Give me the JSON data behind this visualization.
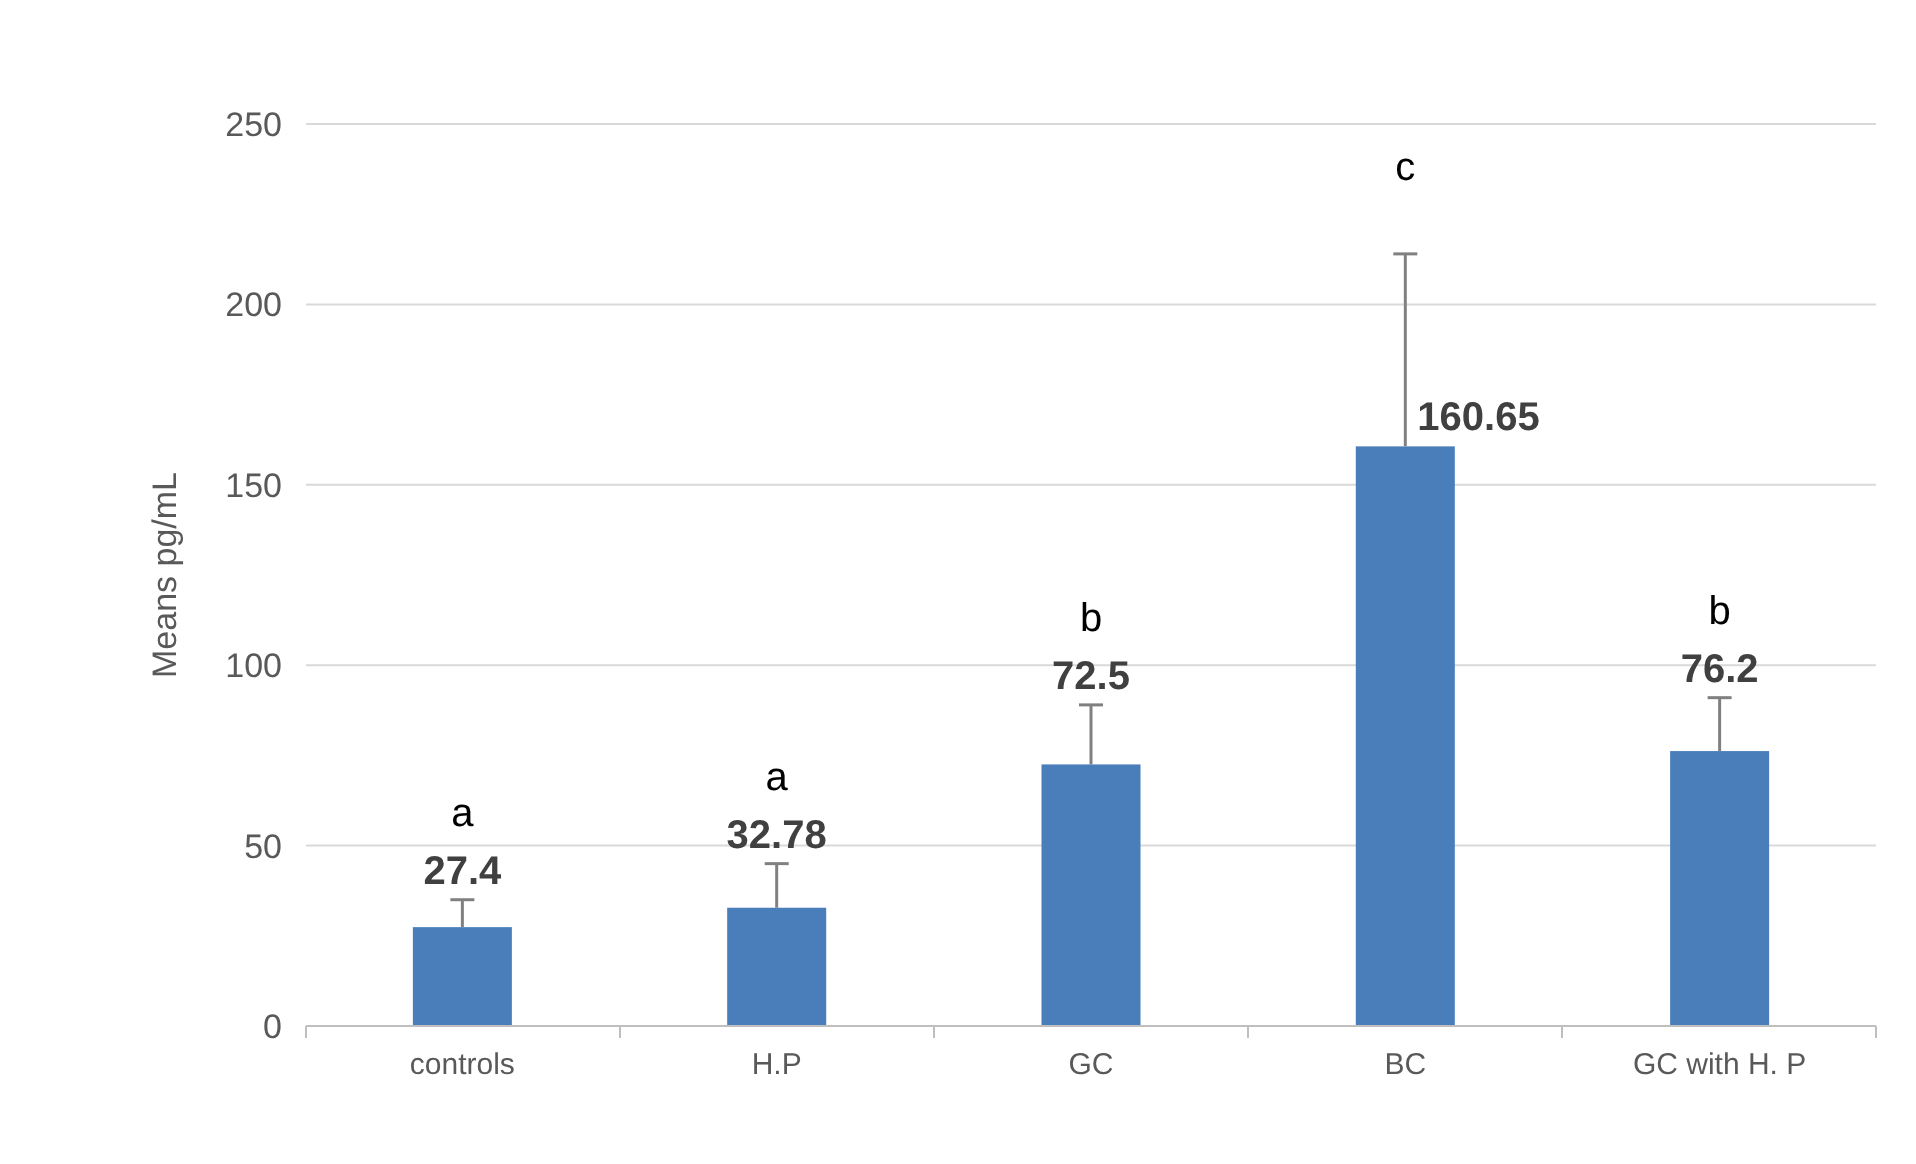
{
  "chart_data": {
    "type": "bar",
    "ylabel": "Means pg/mL",
    "categories": [
      "controls",
      "H.P",
      "GC",
      "BC",
      "GC with H. P"
    ],
    "values": [
      27.4,
      32.78,
      72.5,
      160.65,
      76.2
    ],
    "color": "#4a7ebb",
    "errors": [
      [
        27.4,
        35
      ],
      [
        32.78,
        45
      ],
      [
        72.5,
        89
      ],
      [
        160.65,
        214
      ],
      [
        76.2,
        91
      ]
    ],
    "ylim": [
      0,
      250
    ],
    "yticks": [
      0,
      50,
      100,
      150,
      200,
      250
    ],
    "grid": "y",
    "data_labels": true,
    "annotations": [
      "a",
      "a",
      "b",
      "c",
      "b"
    ]
  }
}
